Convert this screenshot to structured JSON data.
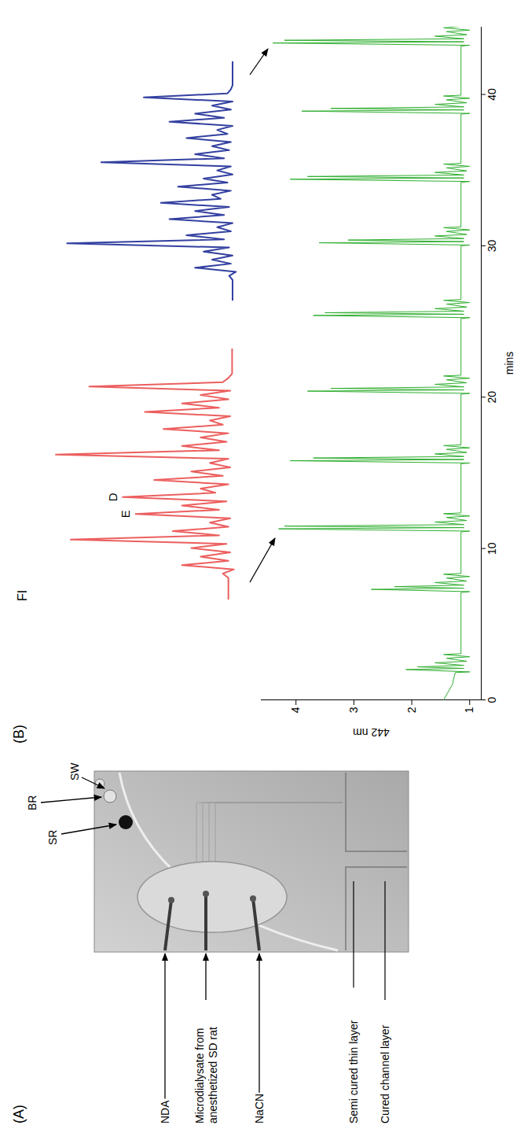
{
  "panel_a": {
    "label": "(A)",
    "top_labels": [
      "SR",
      "BR",
      "SW"
    ],
    "inlet_labels": [
      "NDA",
      "Microdialysate from anesthetized SD rat",
      "NaCN"
    ],
    "layer_labels": [
      "Semi cured thin layer",
      "Cured channel layer"
    ]
  },
  "panel_b": {
    "label": "(B)"
  },
  "chart_data": [
    {
      "type": "line",
      "xlabel": "mins",
      "ylabel": "442 nm",
      "xlim": [
        0,
        44.5
      ],
      "ylim": [
        0.8,
        4.6
      ],
      "xticks": [
        0,
        10,
        20,
        30,
        40
      ],
      "yticks": [
        1,
        2,
        3,
        4
      ],
      "x": [
        0,
        1.0,
        1.8,
        1.85,
        2.0,
        2.08,
        2.18,
        2.28,
        2.45,
        2.55,
        2.75,
        2.85,
        3.0,
        3.05,
        7.1,
        7.15,
        7.3,
        7.38,
        7.48,
        7.58,
        7.75,
        7.85,
        8.05,
        8.15,
        8.3,
        8.35,
        11.1,
        11.15,
        11.3,
        11.38,
        11.48,
        11.58,
        11.75,
        11.85,
        12.05,
        12.15,
        12.3,
        12.35,
        15.6,
        15.65,
        15.8,
        15.88,
        15.98,
        16.08,
        16.25,
        16.35,
        16.55,
        16.65,
        16.8,
        16.85,
        20.2,
        20.25,
        20.4,
        20.48,
        20.58,
        20.68,
        20.85,
        20.95,
        21.15,
        21.25,
        21.4,
        21.45,
        25.2,
        25.25,
        25.4,
        25.48,
        25.58,
        25.68,
        25.85,
        25.95,
        26.15,
        26.25,
        26.4,
        26.45,
        30.0,
        30.05,
        30.2,
        30.28,
        30.38,
        30.48,
        30.65,
        30.75,
        30.95,
        31.05,
        31.2,
        31.25,
        34.2,
        34.25,
        34.4,
        34.48,
        34.58,
        34.68,
        34.85,
        34.95,
        35.15,
        35.25,
        35.4,
        35.45,
        38.7,
        38.75,
        38.9,
        38.98,
        39.08,
        39.18,
        39.35,
        39.45,
        39.65,
        39.75,
        39.9,
        39.95,
        43.2,
        43.25,
        43.4,
        43.48,
        43.58,
        43.68,
        43.85,
        43.95,
        44.15,
        44.25,
        44.4,
        44.5
      ],
      "series": [
        {
          "color": "#2fae2f",
          "values": [
            1.45,
            1.3,
            1.25,
            1.0,
            2.1,
            1.1,
            1.9,
            1.1,
            1.6,
            1.05,
            1.4,
            1.0,
            1.45,
            1.15,
            1.15,
            1.0,
            2.7,
            1.1,
            2.3,
            1.1,
            1.6,
            1.05,
            1.4,
            1.0,
            1.45,
            1.15,
            1.15,
            1.0,
            4.3,
            1.1,
            4.2,
            1.1,
            1.6,
            1.05,
            1.4,
            1.0,
            1.45,
            1.15,
            1.15,
            1.0,
            4.1,
            1.1,
            3.7,
            1.1,
            1.6,
            1.05,
            1.4,
            1.0,
            1.45,
            1.15,
            1.15,
            1.0,
            3.8,
            1.1,
            3.4,
            1.1,
            1.6,
            1.05,
            1.4,
            1.0,
            1.45,
            1.15,
            1.15,
            1.0,
            3.7,
            1.1,
            3.5,
            1.1,
            1.6,
            1.05,
            1.4,
            1.0,
            1.45,
            1.15,
            1.15,
            1.0,
            3.6,
            1.1,
            3.1,
            1.1,
            1.6,
            1.05,
            1.4,
            1.0,
            1.45,
            1.15,
            1.15,
            1.0,
            4.1,
            1.1,
            3.8,
            1.1,
            1.6,
            1.05,
            1.4,
            1.0,
            1.45,
            1.15,
            1.15,
            1.0,
            3.9,
            1.1,
            3.4,
            1.1,
            1.6,
            1.05,
            1.4,
            1.0,
            1.45,
            1.15,
            1.15,
            1.0,
            4.4,
            1.1,
            4.2,
            1.1,
            1.6,
            1.05,
            1.4,
            1.0,
            1.45,
            1.15
          ]
        }
      ]
    },
    {
      "type": "line",
      "ylabel": "FI",
      "ylim": [
        0,
        1.05
      ],
      "tick_labels": false,
      "series": [
        {
          "color": "#ec5f5f",
          "values": [
            0.05,
            0.05,
            0.05,
            0.05,
            0.05,
            0.05,
            0.08,
            0.02,
            0.3,
            0.05,
            0.2,
            0.04,
            0.25,
            0.06,
            0.9,
            0.1,
            0.35,
            0.05,
            0.15,
            0.04,
            0.55,
            0.1,
            0.3,
            0.06,
            0.62,
            0.12,
            0.2,
            0.05,
            0.45,
            0.08,
            0.25,
            0.04,
            0.15,
            0.05,
            0.98,
            0.1,
            0.3,
            0.06,
            0.2,
            0.05,
            0.4,
            0.08,
            0.15,
            0.04,
            0.5,
            0.1,
            0.3,
            0.05,
            0.2,
            0.04,
            0.8,
            0.08,
            0.05,
            0.03,
            0.03,
            0.03,
            0.03,
            0.03,
            0.03,
            0.03
          ]
        }
      ],
      "annotations": [
        {
          "text": "D",
          "x": 24
        },
        {
          "text": "E",
          "x": 20
        }
      ]
    },
    {
      "type": "line",
      "ylim": [
        0,
        1.05
      ],
      "tick_labels": false,
      "series": [
        {
          "color": "#3340a0",
          "values": [
            0.03,
            0.03,
            0.03,
            0.03,
            0.03,
            0.03,
            0.05,
            0.01,
            0.25,
            0.04,
            0.15,
            0.03,
            0.2,
            0.05,
            1.0,
            0.08,
            0.3,
            0.04,
            0.12,
            0.03,
            0.4,
            0.08,
            0.25,
            0.05,
            0.45,
            0.1,
            0.15,
            0.04,
            0.35,
            0.06,
            0.2,
            0.03,
            0.12,
            0.04,
            0.8,
            0.08,
            0.25,
            0.05,
            0.15,
            0.04,
            0.3,
            0.06,
            0.12,
            0.03,
            0.4,
            0.08,
            0.25,
            0.04,
            0.15,
            0.03,
            0.55,
            0.06,
            0.04,
            0.03,
            0.03,
            0.03,
            0.03,
            0.03,
            0.03,
            0.03
          ]
        }
      ]
    }
  ]
}
